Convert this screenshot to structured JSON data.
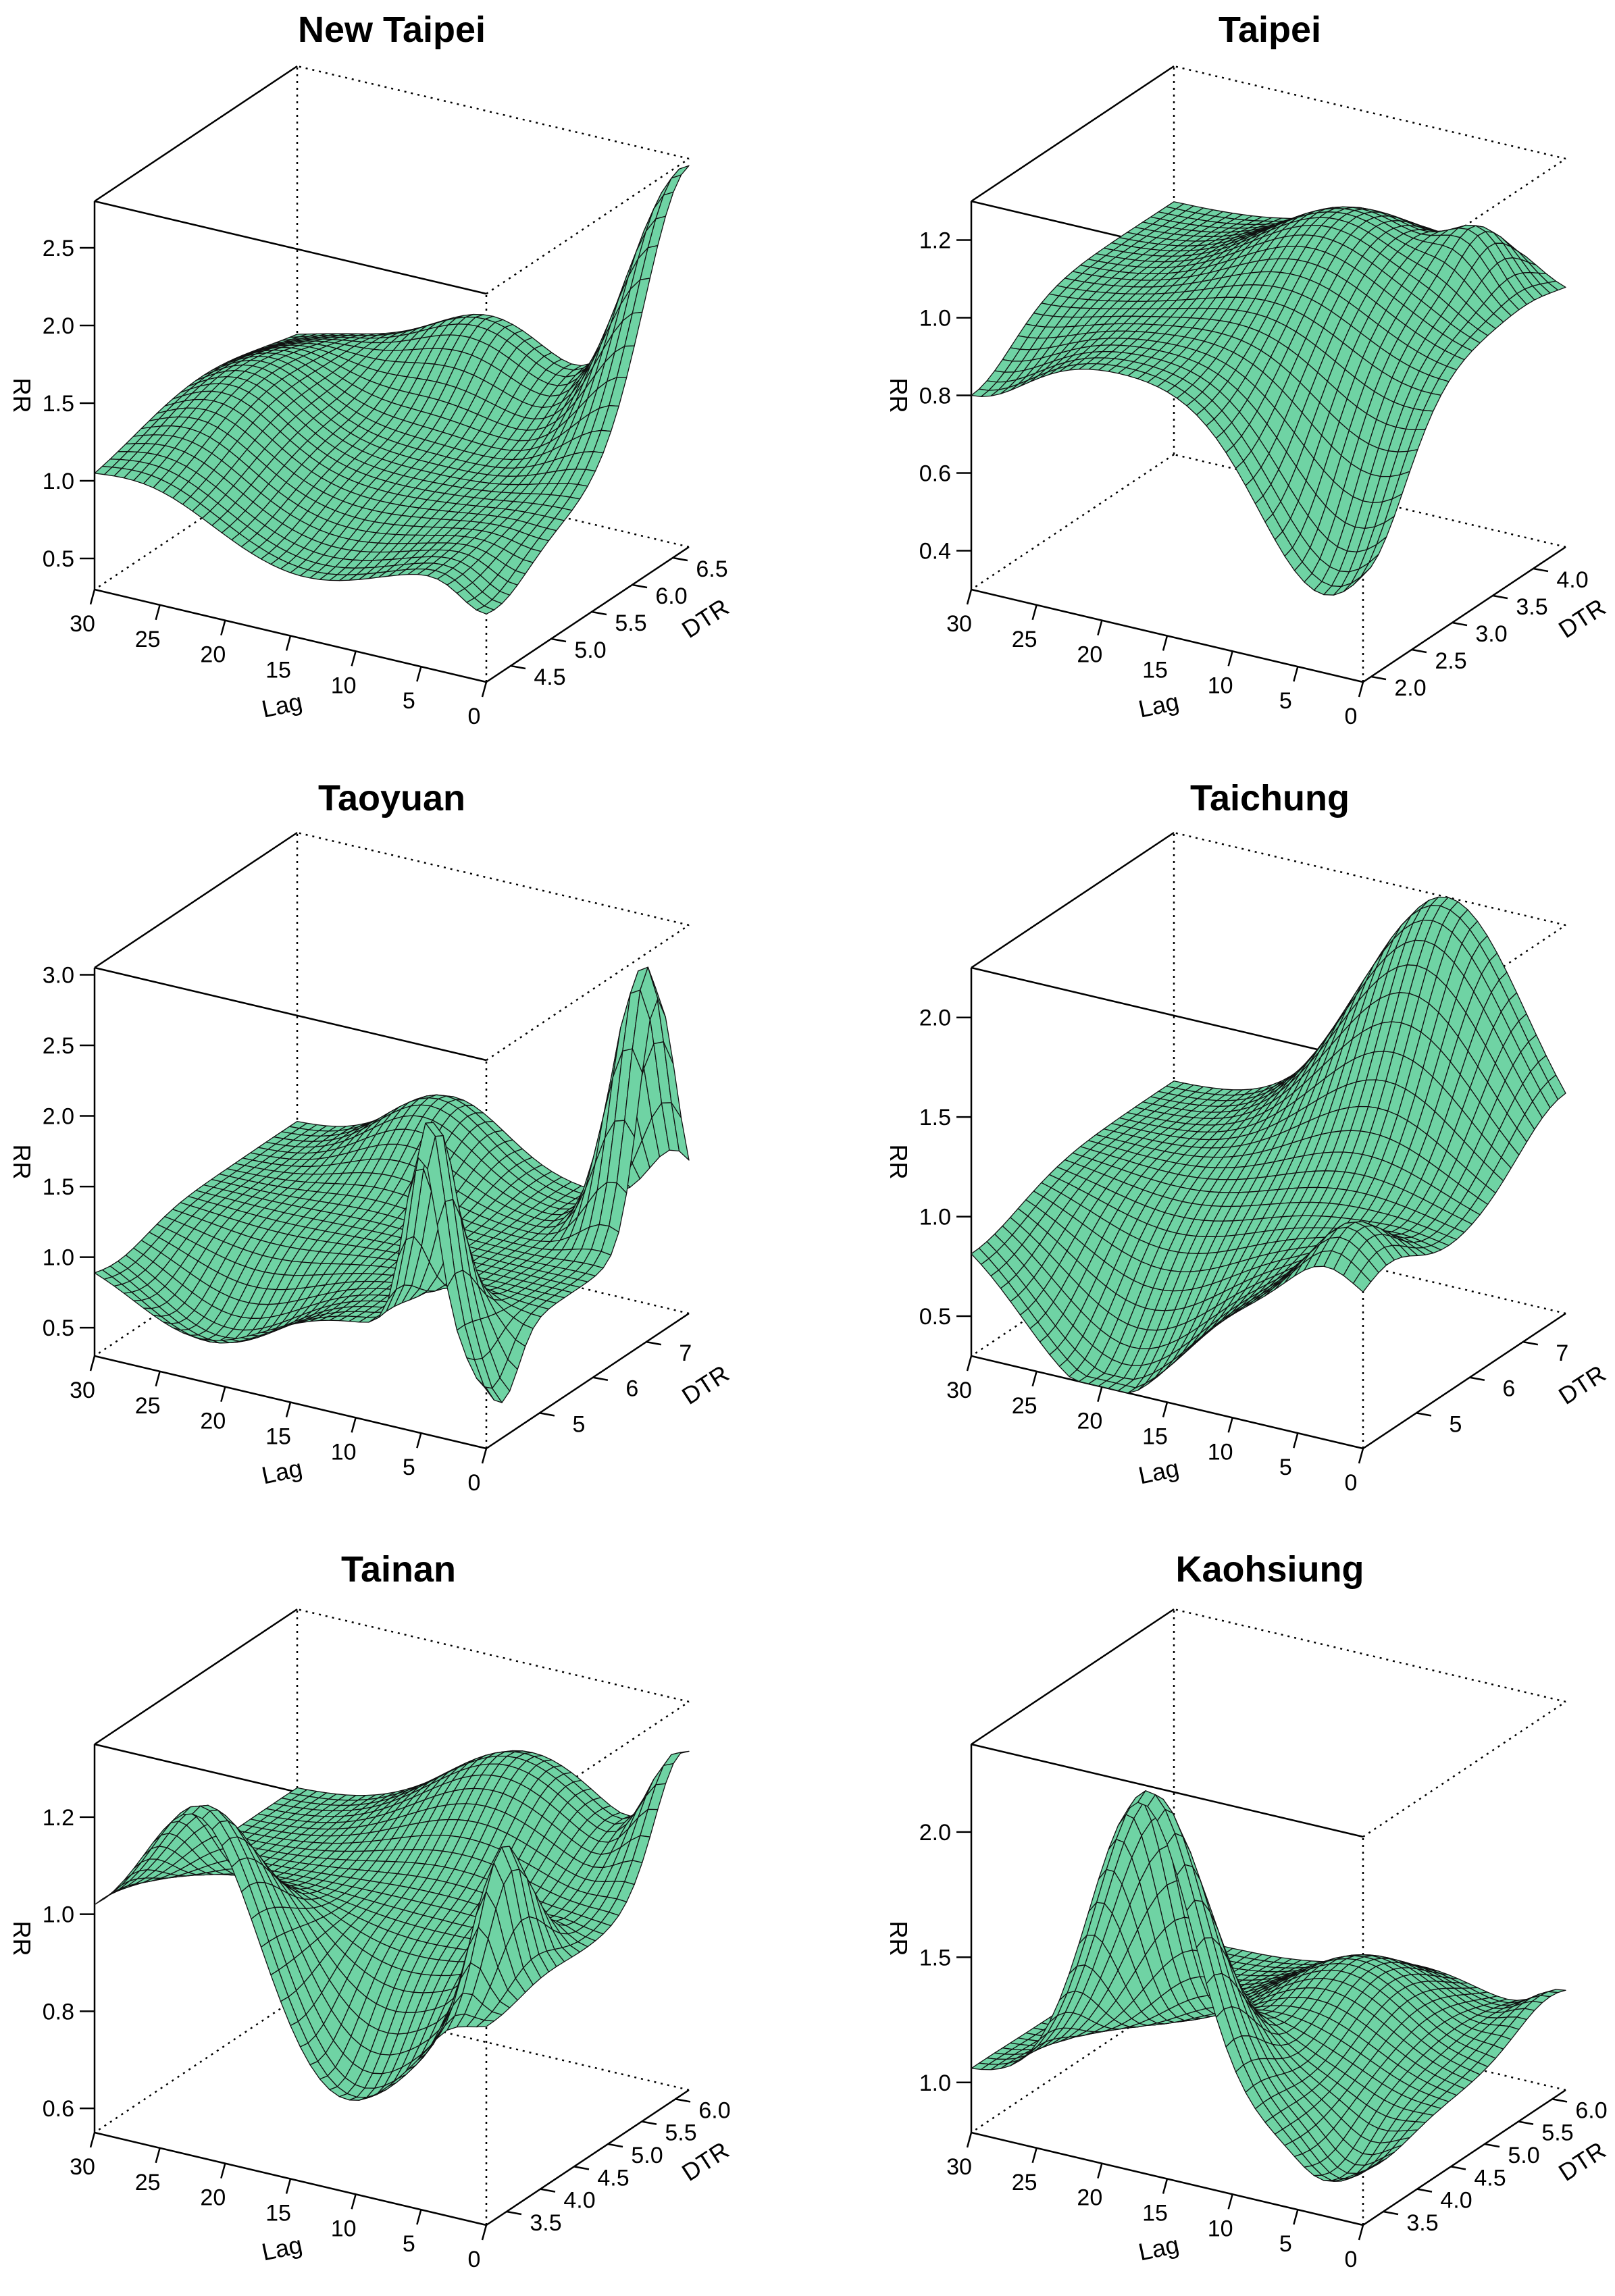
{
  "figure": {
    "surface_color": "#6FD3A4",
    "edge_color": "#111111"
  },
  "chart_data": [
    {
      "type": "surface3d",
      "title": "New Taipei",
      "xlabel": "Lag",
      "ylabel": "DTR",
      "zlabel": "RR",
      "x_range": [
        0,
        30
      ],
      "y_range": [
        4.2,
        6.7
      ],
      "z_range": [
        0.3,
        2.8
      ],
      "x_ticks": [
        0,
        5,
        10,
        15,
        20,
        25,
        30
      ],
      "y_ticks": [
        4.5,
        5.0,
        5.5,
        6.0,
        6.5
      ],
      "z_ticks": [
        0.5,
        1.0,
        1.5,
        2.0,
        2.5
      ],
      "x_tick_labels": [
        "0",
        "5",
        "10",
        "15",
        "20",
        "25",
        "30"
      ],
      "y_tick_labels": [
        "4.5",
        "5.0",
        "5.5",
        "6.0",
        "6.5"
      ],
      "z_tick_labels": [
        "0.5",
        "1.0",
        "1.5",
        "2.0",
        "2.5"
      ],
      "surface": {
        "base": 1.0,
        "features": [
          {
            "lag": 0,
            "dtr": 6.7,
            "height": 1.75,
            "lag_width": 3.5,
            "dtr_width": 0.55
          },
          {
            "lag": 15,
            "dtr": 6.6,
            "height": 0.5,
            "lag_width": 5,
            "dtr_width": 0.4
          },
          {
            "lag": 14,
            "dtr": 4.2,
            "height": -0.3,
            "lag_width": 6,
            "dtr_width": 0.6
          },
          {
            "lag": 26,
            "dtr": 5.5,
            "height": 0.35,
            "lag_width": 4,
            "dtr_width": 0.8
          },
          {
            "lag": 0,
            "dtr": 4.3,
            "height": -0.25,
            "lag_width": 2,
            "dtr_width": 0.4
          }
        ]
      }
    },
    {
      "type": "surface3d",
      "title": "Taipei",
      "xlabel": "Lag",
      "ylabel": "DTR",
      "zlabel": "RR",
      "x_range": [
        0,
        30
      ],
      "y_range": [
        1.9,
        4.4
      ],
      "z_range": [
        0.3,
        1.3
      ],
      "x_ticks": [
        0,
        5,
        10,
        15,
        20,
        25,
        30
      ],
      "y_ticks": [
        2.0,
        2.5,
        3.0,
        3.5,
        4.0
      ],
      "z_ticks": [
        0.4,
        0.6,
        0.8,
        1.0,
        1.2
      ],
      "x_tick_labels": [
        "0",
        "5",
        "10",
        "15",
        "20",
        "25",
        "30"
      ],
      "y_tick_labels": [
        "2.0",
        "2.5",
        "3.0",
        "3.5",
        "4.0"
      ],
      "z_tick_labels": [
        "0.4",
        "0.6",
        "0.8",
        "1.0",
        "1.2"
      ],
      "surface": {
        "base": 0.95,
        "features": [
          {
            "lag": 3,
            "dtr": 1.9,
            "height": -0.45,
            "lag_width": 5,
            "dtr_width": 0.5
          },
          {
            "lag": 12,
            "dtr": 3.6,
            "height": 0.22,
            "lag_width": 6,
            "dtr_width": 0.6
          },
          {
            "lag": 4,
            "dtr": 4.0,
            "height": 0.12,
            "lag_width": 2,
            "dtr_width": 0.3
          },
          {
            "lag": 30,
            "dtr": 1.9,
            "height": -0.15,
            "lag_width": 4,
            "dtr_width": 0.5
          }
        ]
      }
    },
    {
      "type": "surface3d",
      "title": "Taoyuan",
      "xlabel": "Lag",
      "ylabel": "DTR",
      "zlabel": "RR",
      "x_range": [
        0,
        30
      ],
      "y_range": [
        4.0,
        7.8
      ],
      "z_range": [
        0.3,
        3.05
      ],
      "x_ticks": [
        0,
        5,
        10,
        15,
        20,
        25,
        30
      ],
      "y_ticks": [
        5,
        6,
        7
      ],
      "z_ticks": [
        0.5,
        1.0,
        1.5,
        2.0,
        2.5,
        3.0
      ],
      "x_tick_labels": [
        "0",
        "5",
        "10",
        "15",
        "20",
        "25",
        "30"
      ],
      "y_tick_labels": [
        "5",
        "6",
        "7"
      ],
      "z_tick_labels": [
        "0.5",
        "1.0",
        "1.5",
        "2.0",
        "2.5",
        "3.0"
      ],
      "surface": {
        "base": 1.0,
        "features": [
          {
            "lag": 1,
            "dtr": 7.2,
            "height": 1.9,
            "lag_width": 2,
            "dtr_width": 0.35
          },
          {
            "lag": 5,
            "dtr": 4.2,
            "height": 1.5,
            "lag_width": 1.3,
            "dtr_width": 0.35
          },
          {
            "lag": 22,
            "dtr": 4.4,
            "height": -0.5,
            "lag_width": 5,
            "dtr_width": 0.6
          },
          {
            "lag": 18,
            "dtr": 7.5,
            "height": 0.5,
            "lag_width": 4,
            "dtr_width": 0.6
          },
          {
            "lag": 0,
            "dtr": 4.3,
            "height": -0.45,
            "lag_width": 1.2,
            "dtr_width": 0.3
          }
        ]
      }
    },
    {
      "type": "surface3d",
      "title": "Taichung",
      "xlabel": "Lag",
      "ylabel": "DTR",
      "zlabel": "RR",
      "x_range": [
        0,
        30
      ],
      "y_range": [
        4.0,
        7.8
      ],
      "z_range": [
        0.3,
        2.25
      ],
      "x_ticks": [
        0,
        5,
        10,
        15,
        20,
        25,
        30
      ],
      "y_ticks": [
        5,
        6,
        7
      ],
      "z_ticks": [
        0.5,
        1.0,
        1.5,
        2.0
      ],
      "x_tick_labels": [
        "0",
        "5",
        "10",
        "15",
        "20",
        "25",
        "30"
      ],
      "y_tick_labels": [
        "5",
        "6",
        "7"
      ],
      "z_tick_labels": [
        "0.5",
        "1.0",
        "1.5",
        "2.0"
      ],
      "surface": {
        "base": 1.0,
        "features": [
          {
            "lag": 9,
            "dtr": 7.8,
            "height": 1.25,
            "lag_width": 6,
            "dtr_width": 0.9
          },
          {
            "lag": 20,
            "dtr": 4.0,
            "height": -0.75,
            "lag_width": 6,
            "dtr_width": 0.9
          },
          {
            "lag": 3,
            "dtr": 4.5,
            "height": 0.3,
            "lag_width": 2.5,
            "dtr_width": 0.5
          }
        ]
      }
    },
    {
      "type": "surface3d",
      "title": "Tainan",
      "xlabel": "Lag",
      "ylabel": "DTR",
      "zlabel": "RR",
      "x_range": [
        0,
        30
      ],
      "y_range": [
        3.2,
        6.2
      ],
      "z_range": [
        0.55,
        1.35
      ],
      "x_ticks": [
        0,
        5,
        10,
        15,
        20,
        25,
        30
      ],
      "y_ticks": [
        3.5,
        4.0,
        4.5,
        5.0,
        5.5,
        6.0
      ],
      "z_ticks": [
        0.6,
        0.8,
        1.0,
        1.2
      ],
      "x_tick_labels": [
        "0",
        "5",
        "10",
        "15",
        "20",
        "25",
        "30"
      ],
      "y_tick_labels": [
        "3.5",
        "4.0",
        "4.5",
        "5.0",
        "5.5",
        "6.0"
      ],
      "z_tick_labels": [
        "0.6",
        "0.8",
        "1.0",
        "1.2"
      ],
      "surface": {
        "base": 0.98,
        "features": [
          {
            "lag": 22,
            "dtr": 3.3,
            "height": 0.3,
            "lag_width": 4,
            "dtr_width": 0.5
          },
          {
            "lag": 11,
            "dtr": 3.3,
            "height": -0.25,
            "lag_width": 5,
            "dtr_width": 0.5
          },
          {
            "lag": 12,
            "dtr": 6.0,
            "height": 0.2,
            "lag_width": 6,
            "dtr_width": 0.6
          },
          {
            "lag": 3,
            "dtr": 4.0,
            "height": 0.28,
            "lag_width": 1.2,
            "dtr_width": 0.35
          },
          {
            "lag": 0,
            "dtr": 6.1,
            "height": 0.25,
            "lag_width": 2,
            "dtr_width": 0.4
          }
        ]
      }
    },
    {
      "type": "surface3d",
      "title": "Kaohsiung",
      "xlabel": "Lag",
      "ylabel": "DTR",
      "zlabel": "RR",
      "x_range": [
        0,
        30
      ],
      "y_range": [
        3.2,
        6.2
      ],
      "z_range": [
        0.8,
        2.35
      ],
      "x_ticks": [
        0,
        5,
        10,
        15,
        20,
        25,
        30
      ],
      "y_ticks": [
        3.5,
        4.0,
        4.5,
        5.0,
        5.5,
        6.0
      ],
      "z_ticks": [
        1.0,
        1.5,
        2.0
      ],
      "x_tick_labels": [
        "0",
        "5",
        "10",
        "15",
        "20",
        "25",
        "30"
      ],
      "y_tick_labels": [
        "3.5",
        "4.0",
        "4.5",
        "5.0",
        "5.5",
        "6.0"
      ],
      "z_tick_labels": [
        "1.0",
        "1.5",
        "2.0"
      ],
      "surface": {
        "base": 1.05,
        "features": [
          {
            "lag": 17,
            "dtr": 3.3,
            "height": 1.25,
            "lag_width": 4,
            "dtr_width": 0.5
          },
          {
            "lag": 11,
            "dtr": 5.2,
            "height": 0.3,
            "lag_width": 5,
            "dtr_width": 0.7
          },
          {
            "lag": 3,
            "dtr": 3.5,
            "height": -0.15,
            "lag_width": 2,
            "dtr_width": 0.4
          },
          {
            "lag": 0,
            "dtr": 6.0,
            "height": 0.15,
            "lag_width": 2,
            "dtr_width": 0.5
          }
        ]
      }
    }
  ]
}
